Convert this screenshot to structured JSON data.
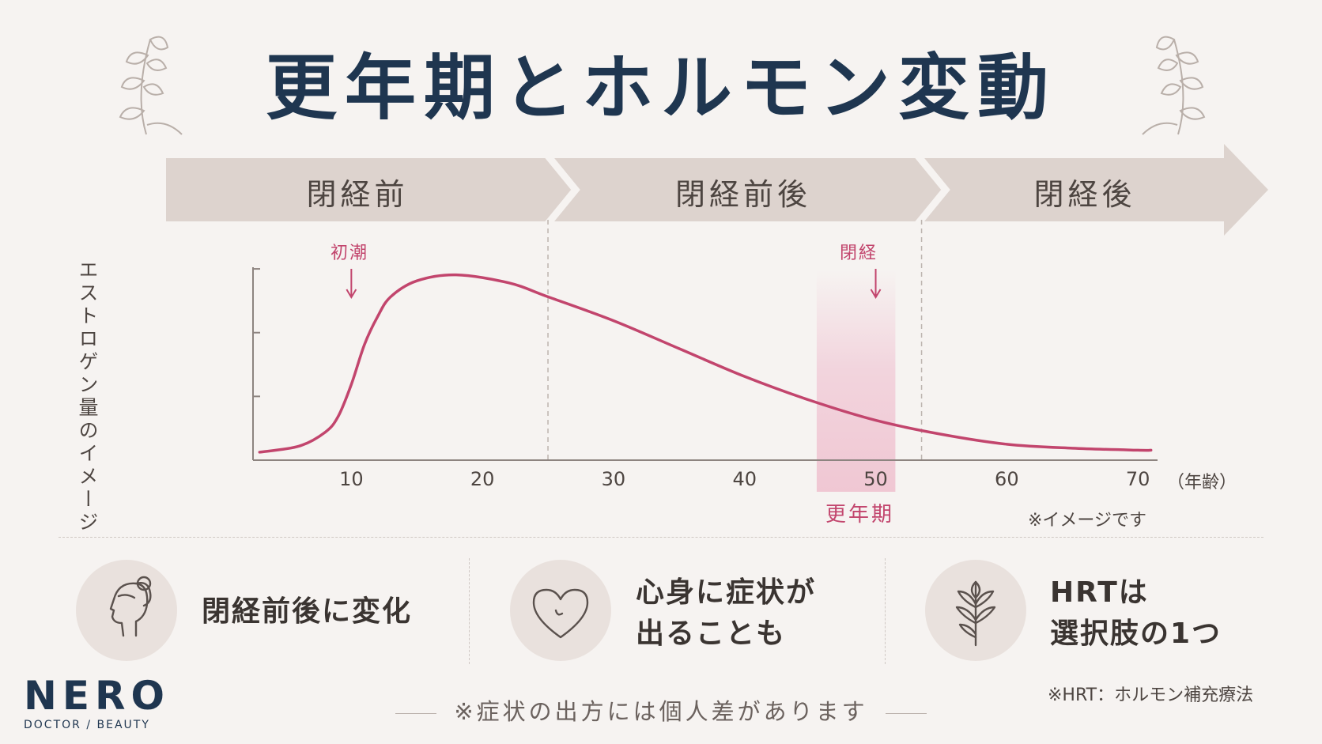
{
  "title": "更年期とホルモン変動",
  "phases": [
    "閉経前",
    "閉経前後",
    "閉経後"
  ],
  "markers": [
    {
      "label": "初潮",
      "age": 10
    },
    {
      "label": "閉経",
      "age": 50
    }
  ],
  "chart_data": {
    "type": "line",
    "title": "更年期とホルモン変動",
    "ylabel": "エストロゲン量のイメージ",
    "xlabel": "",
    "x_unit": "（年齢）",
    "x_ticks": [
      10,
      20,
      30,
      40,
      50,
      60,
      70
    ],
    "xlim": [
      2.5,
      71.5
    ],
    "ylim": [
      0,
      100
    ],
    "y_ticks": [
      32,
      64,
      96
    ],
    "series": [
      {
        "x": [
          3,
          6,
          8,
          9,
          10,
          11,
          12,
          13,
          15,
          18,
          22,
          25,
          30,
          35,
          40,
          45,
          50,
          55,
          60,
          65,
          70,
          71
        ],
        "y": [
          4,
          7,
          14,
          22,
          38,
          58,
          72,
          82,
          90,
          93,
          89,
          82,
          70,
          56,
          42,
          30,
          20,
          13,
          8,
          6,
          5,
          5
        ],
        "color": "#c2456d"
      }
    ],
    "highlight_band": {
      "label": "更年期",
      "x_start": 45.5,
      "x_end": 51.5
    },
    "phase_boundaries": [
      25,
      53.5
    ],
    "grid": false
  },
  "note_image": "※イメージです",
  "features": [
    {
      "icon": "woman-profile-icon",
      "lines": [
        "閉経前後に変化"
      ]
    },
    {
      "icon": "heart-icon",
      "lines": [
        "心身に症状が",
        "出ることも"
      ]
    },
    {
      "icon": "leaf-branch-icon",
      "lines": [
        "HRTは",
        "選択肢の1つ"
      ]
    }
  ],
  "hrt_note": "※HRT：ホルモン補充療法",
  "footnote": "※症状の出方には個人差があります",
  "logo": {
    "main": "NERO",
    "sub": "DOCTOR / BEAUTY"
  },
  "colors": {
    "accent": "#c2456d",
    "title": "#1f3650",
    "arrow": "#ddd3ce"
  }
}
